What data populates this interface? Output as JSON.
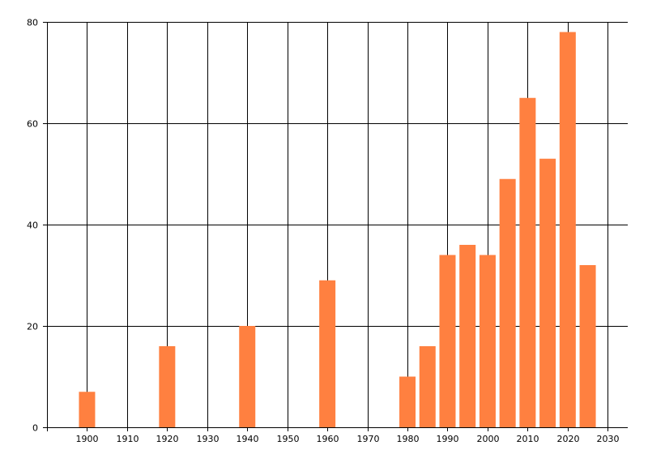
{
  "chart_data": {
    "type": "bar",
    "title": "",
    "xlabel": "",
    "ylabel": "",
    "xlim": [
      1890,
      2035
    ],
    "ylim": [
      0,
      80
    ],
    "x_ticks": [
      1900,
      1910,
      1920,
      1930,
      1940,
      1950,
      1960,
      1970,
      1980,
      1990,
      2000,
      2010,
      2020,
      2030
    ],
    "y_ticks": [
      0,
      20,
      40,
      60,
      80
    ],
    "grid": true,
    "bar_color": "#FF8040",
    "points": [
      {
        "x": 1900,
        "y": 7
      },
      {
        "x": 1920,
        "y": 16
      },
      {
        "x": 1940,
        "y": 20
      },
      {
        "x": 1960,
        "y": 29
      },
      {
        "x": 1980,
        "y": 10
      },
      {
        "x": 1985,
        "y": 16
      },
      {
        "x": 1990,
        "y": 34
      },
      {
        "x": 1995,
        "y": 36
      },
      {
        "x": 2000,
        "y": 34
      },
      {
        "x": 2005,
        "y": 49
      },
      {
        "x": 2010,
        "y": 65
      },
      {
        "x": 2015,
        "y": 53
      },
      {
        "x": 2020,
        "y": 78
      },
      {
        "x": 2025,
        "y": 32
      }
    ]
  }
}
